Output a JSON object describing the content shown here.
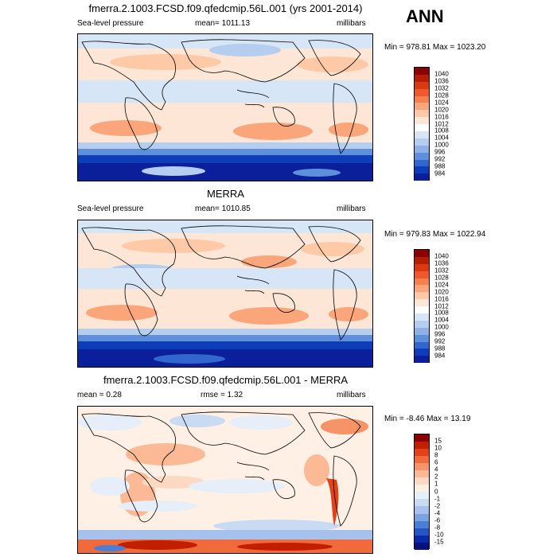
{
  "season": "ANN",
  "panels": [
    {
      "title": "fmerra.2.1003.FCSD.f09.qfedcmip.56L.001 (yrs 2001-2014)",
      "left_label": "Sea-level pressure",
      "center_label": "mean= 1011.13",
      "right_label": "millibars",
      "minmax": "Min = 978.81 Max = 1023.20",
      "colorbar": {
        "levels": [
          "1040",
          "1036",
          "1032",
          "1028",
          "1024",
          "1020",
          "1016",
          "1012",
          "1008",
          "1004",
          "1000",
          "996",
          "992",
          "988",
          "984"
        ],
        "colors": [
          "#8b0000",
          "#b31f00",
          "#d93a12",
          "#ee5a2e",
          "#f7804f",
          "#fba57a",
          "#fdc9a6",
          "#fde6d6",
          "#ffffff",
          "#d6e6f7",
          "#b5cdef",
          "#8eb2e7",
          "#5e8fdb",
          "#3366cc",
          "#0d3db8",
          "#0a1f99"
        ]
      }
    },
    {
      "title": "MERRA",
      "left_label": "Sea-level pressure",
      "center_label": "mean= 1010.85",
      "right_label": "millibars",
      "minmax": "Min = 979.83 Max = 1022.94",
      "colorbar": {
        "levels": [
          "1040",
          "1036",
          "1032",
          "1028",
          "1024",
          "1020",
          "1016",
          "1012",
          "1008",
          "1004",
          "1000",
          "996",
          "992",
          "988",
          "984"
        ],
        "colors": [
          "#8b0000",
          "#b31f00",
          "#d93a12",
          "#ee5a2e",
          "#f7804f",
          "#fba57a",
          "#fdc9a6",
          "#fde6d6",
          "#ffffff",
          "#d6e6f7",
          "#b5cdef",
          "#8eb2e7",
          "#5e8fdb",
          "#3366cc",
          "#0d3db8",
          "#0a1f99"
        ]
      }
    },
    {
      "title": "fmerra.2.1003.FCSD.f09.qfedcmip.56L.001 - MERRA",
      "left_label": "mean =   0.28",
      "center_label": "rmse =   1.32",
      "right_label": "millibars",
      "minmax": "Min =  -8.46 Max =  13.19",
      "colorbar": {
        "levels": [
          "15",
          "10",
          "8",
          "6",
          "4",
          "2",
          "1",
          "0",
          "-1",
          "-2",
          "-4",
          "-6",
          "-8",
          "-10",
          "-15"
        ],
        "colors": [
          "#8b0000",
          "#c21f00",
          "#e0421a",
          "#f06a3c",
          "#f79467",
          "#fbba95",
          "#fdd9c3",
          "#fff0e6",
          "#e6eefa",
          "#c9daf3",
          "#a6c2ec",
          "#7aa3e2",
          "#4b7fd5",
          "#2656c4",
          "#0a2aa8",
          "#08127f"
        ]
      }
    }
  ]
}
